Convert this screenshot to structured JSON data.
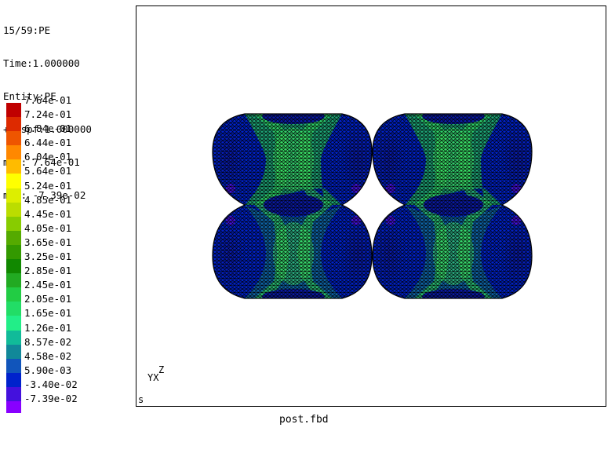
{
  "info": {
    "lines": [
      "15/59:PE",
      "Time:1.000000",
      "Entity:PE",
      "+Dispf:1.000000",
      "max: 7.64e-01",
      "min: -7.39e-02"
    ]
  },
  "legend": [
    {
      "label": "7.64e-01",
      "color": "#c00000"
    },
    {
      "label": "7.24e-01",
      "color": "#dd2a00"
    },
    {
      "label": "6.84e-01",
      "color": "#ee5500"
    },
    {
      "label": "6.44e-01",
      "color": "#ff8800"
    },
    {
      "label": "6.04e-01",
      "color": "#ffbb00"
    },
    {
      "label": "5.64e-01",
      "color": "#ffff00"
    },
    {
      "label": "5.24e-01",
      "color": "#ddee00"
    },
    {
      "label": "4.85e-01",
      "color": "#bbdd00"
    },
    {
      "label": "4.45e-01",
      "color": "#88cc00"
    },
    {
      "label": "4.05e-01",
      "color": "#55aa00"
    },
    {
      "label": "3.65e-01",
      "color": "#339900"
    },
    {
      "label": "3.25e-01",
      "color": "#118800"
    },
    {
      "label": "2.85e-01",
      "color": "#22aa22"
    },
    {
      "label": "2.45e-01",
      "color": "#22cc44"
    },
    {
      "label": "2.05e-01",
      "color": "#22dd66"
    },
    {
      "label": "1.65e-01",
      "color": "#22ee88"
    },
    {
      "label": "1.26e-01",
      "color": "#11bb99"
    },
    {
      "label": "8.57e-02",
      "color": "#118899"
    },
    {
      "label": "4.58e-02",
      "color": "#1155bb"
    },
    {
      "label": "5.90e-03",
      "color": "#0022cc"
    },
    {
      "label": "-3.40e-02",
      "color": "#4411dd"
    },
    {
      "label": "-7.39e-02",
      "color": "#8800ff"
    }
  ],
  "viewport": {
    "axis_labels": {
      "z": "Z",
      "yx": "YX"
    },
    "corner": "s"
  },
  "footer": {
    "filename": "post.fbd"
  }
}
